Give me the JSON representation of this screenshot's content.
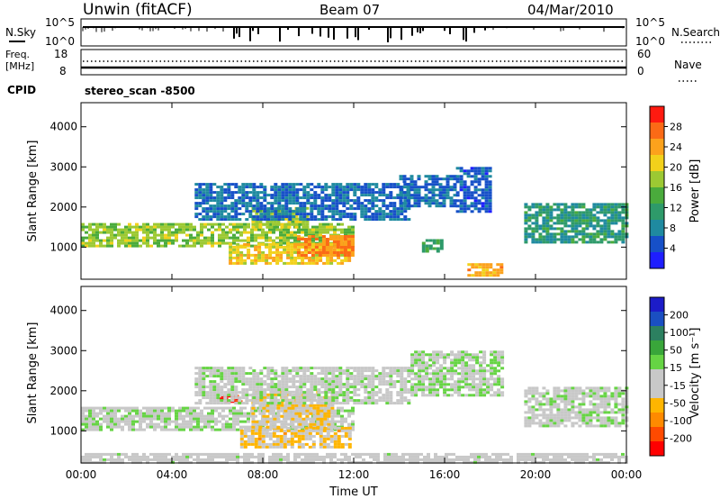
{
  "header": {
    "station": "Unwin (fitACF)",
    "beam": "Beam 07",
    "date": "04/Mar/2010"
  },
  "status_panels": {
    "nsky": {
      "label": "N.Sky",
      "right_label": "N.Search",
      "left_ticks": [
        "10^5",
        "10^0"
      ],
      "right_ticks": [
        "10^5",
        "10^0"
      ]
    },
    "freq": {
      "label_line1": "Freq.",
      "label_line2": "[MHz]",
      "right_label": "Nave",
      "left_ticks": [
        "18",
        "8"
      ],
      "right_ticks": [
        "60",
        "0"
      ]
    },
    "cpid": {
      "label": "CPID",
      "value": "stereo_scan -8500"
    }
  },
  "colors": {
    "power_scale": [
      "#1e1eff",
      "#1650c8",
      "#1f8aa0",
      "#2e9a6a",
      "#4aab3c",
      "#9cc933",
      "#f2d11b",
      "#fca21c",
      "#fb6a16",
      "#ff1a10"
    ],
    "velocity_scale": [
      "#ff0000",
      "#ff4a00",
      "#ff8a00",
      "#ffb500",
      "#c8c8c8",
      "#c8c8c8",
      "#66d444",
      "#39a63a",
      "#2c8060",
      "#1a4fc2",
      "#1c1cc8"
    ]
  },
  "chart_data": [
    {
      "type": "heatmap",
      "name": "power",
      "xlabel": "Time UT",
      "ylabel": "Slant Range [km]",
      "x_ticks": [
        "00:00",
        "04:00",
        "08:00",
        "12:00",
        "16:00",
        "20:00",
        "00:00"
      ],
      "xlim": [
        0,
        24
      ],
      "ylim": [
        200,
        4600
      ],
      "y_ticks": [
        1000,
        2000,
        3000,
        4000
      ],
      "colorbar": {
        "label": "Power [dB]",
        "ticks": [
          "28",
          "24",
          "20",
          "16",
          "12",
          "8",
          "4"
        ],
        "range": [
          0,
          30
        ]
      },
      "regions": [
        {
          "t0": 0.0,
          "t1": 12.0,
          "r0": 1050,
          "r1": 1600,
          "value": 16
        },
        {
          "t0": 6.5,
          "t1": 11.8,
          "r0": 600,
          "r1": 1100,
          "value": 20
        },
        {
          "t0": 9.5,
          "t1": 12.0,
          "r0": 800,
          "r1": 1300,
          "value": 24
        },
        {
          "t0": 7.5,
          "t1": 10.0,
          "r0": 1500,
          "r1": 2000,
          "value": 17
        },
        {
          "t0": 5.0,
          "t1": 14.5,
          "r0": 1700,
          "r1": 2600,
          "value": 6
        },
        {
          "t0": 14.0,
          "t1": 16.5,
          "r0": 2000,
          "r1": 2800,
          "value": 6
        },
        {
          "t0": 16.5,
          "t1": 18.0,
          "r0": 1900,
          "r1": 3000,
          "value": 5
        },
        {
          "t0": 19.5,
          "t1": 24.0,
          "r0": 1100,
          "r1": 2100,
          "value": 10
        },
        {
          "t0": 15.0,
          "t1": 15.8,
          "r0": 900,
          "r1": 1200,
          "value": 12
        },
        {
          "t0": 17.0,
          "t1": 18.5,
          "r0": 300,
          "r1": 600,
          "value": 22
        }
      ]
    },
    {
      "type": "heatmap",
      "name": "velocity",
      "xlabel": "Time UT",
      "ylabel": "Slant Range [km]",
      "x_ticks": [
        "00:00",
        "04:00",
        "08:00",
        "12:00",
        "16:00",
        "20:00",
        "00:00"
      ],
      "xlim": [
        0,
        24
      ],
      "ylim": [
        200,
        4600
      ],
      "y_ticks": [
        1000,
        2000,
        3000,
        4000
      ],
      "colorbar": {
        "label": "Velocity [m s⁻¹]",
        "ticks": [
          "200",
          "100",
          "50",
          "15",
          "-15",
          "-50",
          "-100",
          "-200"
        ],
        "range": [
          -250,
          250
        ]
      },
      "regions": [
        {
          "t0": 0.0,
          "t1": 12.0,
          "r0": 1050,
          "r1": 1600,
          "value": 0
        },
        {
          "t0": 7.0,
          "t1": 11.8,
          "r0": 600,
          "r1": 1100,
          "value": -70
        },
        {
          "t0": 6.0,
          "t1": 7.0,
          "r0": 1700,
          "r1": 1900,
          "value": -220
        },
        {
          "t0": 7.5,
          "t1": 11.0,
          "r0": 1100,
          "r1": 2000,
          "value": -60
        },
        {
          "t0": 5.0,
          "t1": 14.5,
          "r0": 1700,
          "r1": 2600,
          "value": 0
        },
        {
          "t0": 19.5,
          "t1": 24.0,
          "r0": 1100,
          "r1": 2100,
          "value": 0
        },
        {
          "t0": 14.5,
          "t1": 18.5,
          "r0": 1900,
          "r1": 3000,
          "value": 10
        },
        {
          "t0": 0.0,
          "t1": 24.0,
          "r0": 200,
          "r1": 450,
          "value": -20
        }
      ]
    }
  ]
}
